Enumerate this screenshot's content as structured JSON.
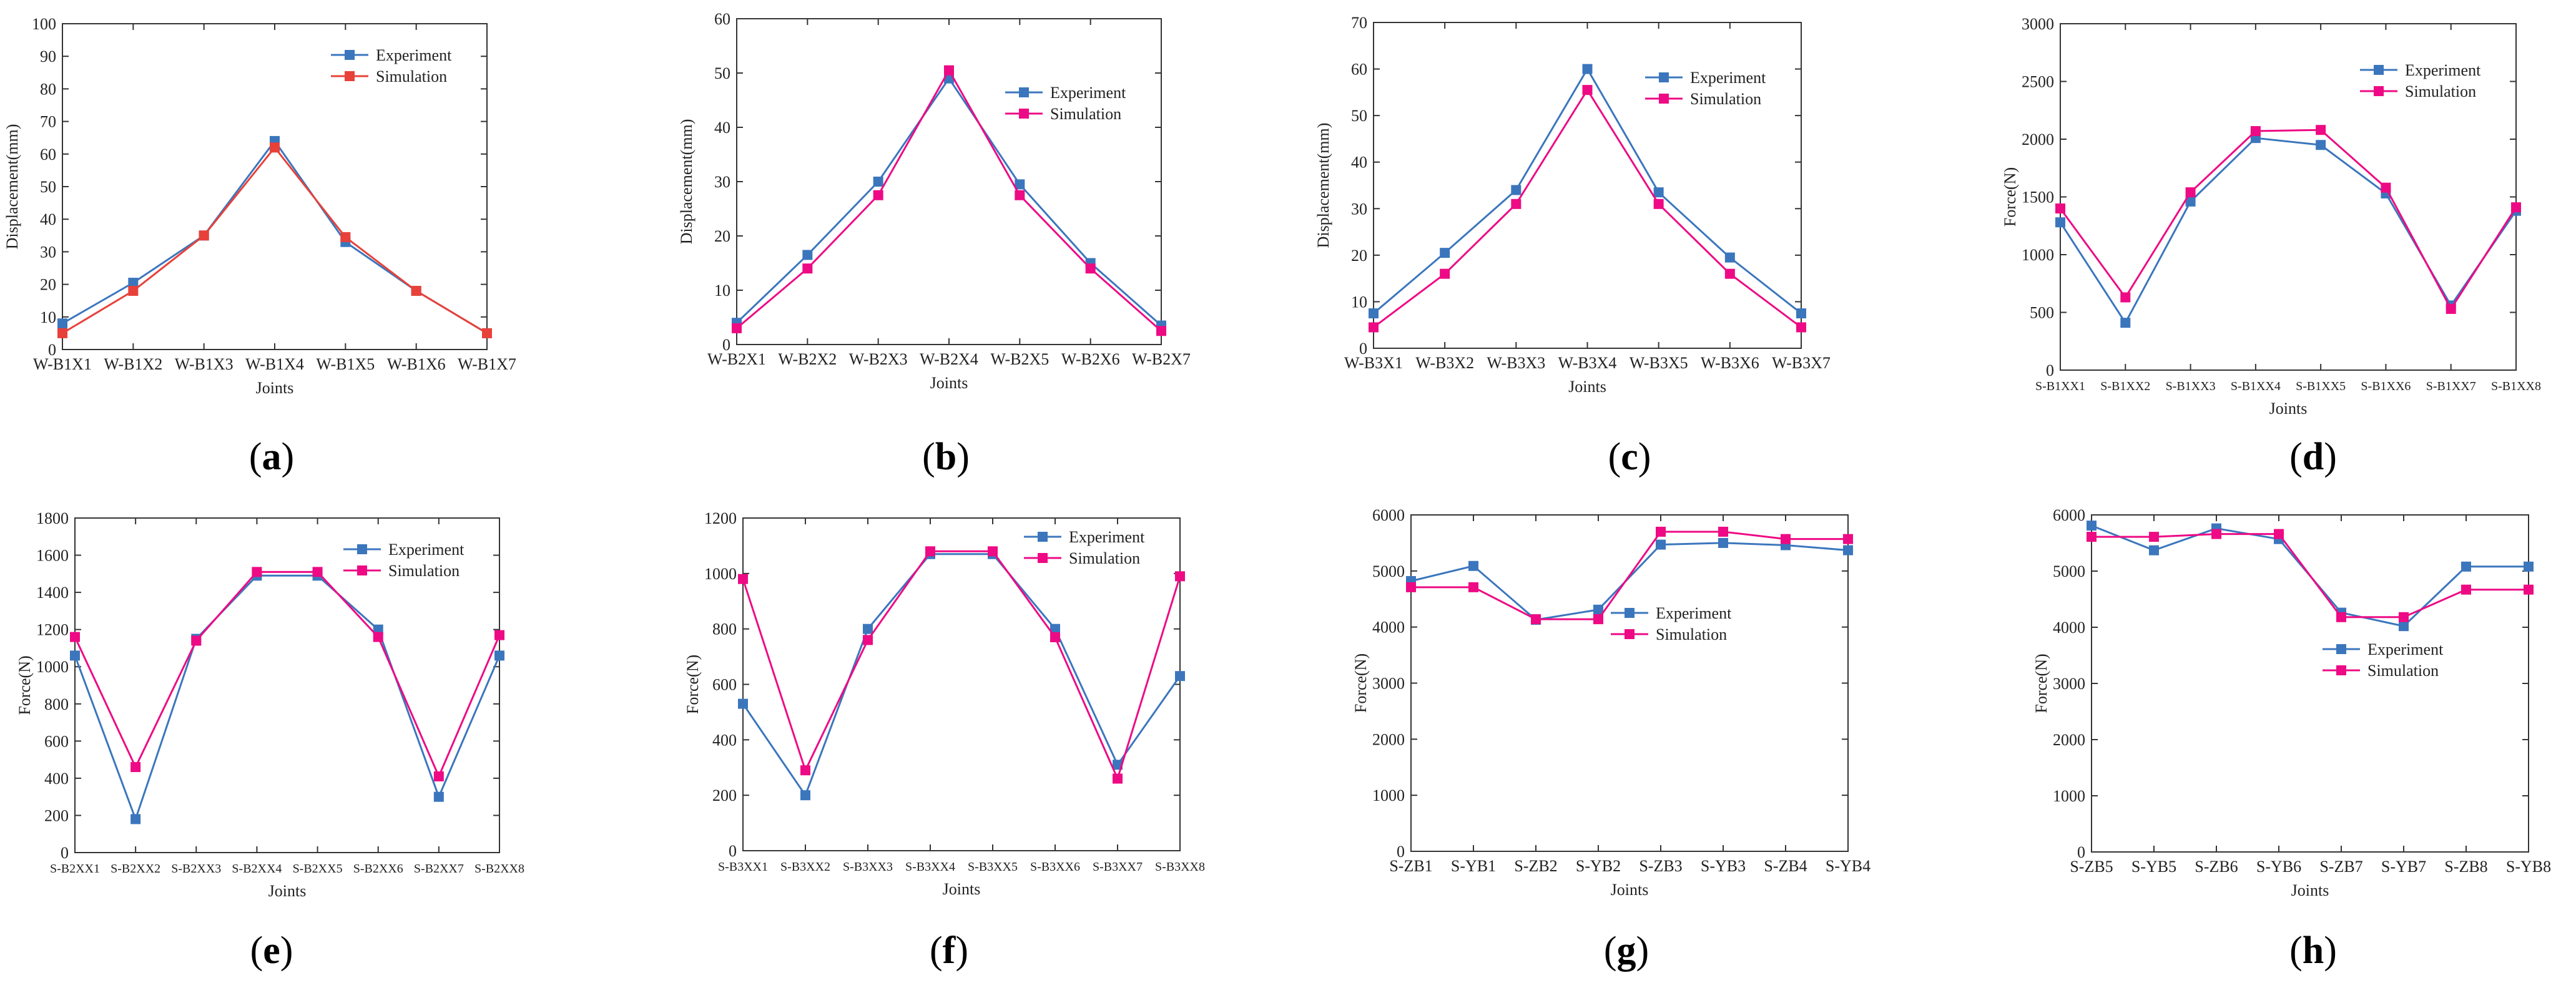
{
  "figure": {
    "colors": {
      "experiment": "#3b76bd",
      "simulation_a": "#e8413a",
      "simulation": "#ee0a84",
      "axis": "#333333"
    }
  },
  "chart_data": [
    {
      "type": "line",
      "panel_label": "a",
      "categories": [
        "W-B1X1",
        "W-B1X2",
        "W-B1X3",
        "W-B1X4",
        "W-B1X5",
        "W-B1X6",
        "W-B1X7"
      ],
      "series": [
        {
          "name": "Experiment",
          "values": [
            8,
            20.5,
            35,
            64,
            33,
            18,
            5
          ],
          "color": "#3b76bd"
        },
        {
          "name": "Simulation",
          "values": [
            5,
            18,
            35,
            62,
            34.5,
            18,
            5
          ],
          "color": "#e8413a"
        }
      ],
      "xlabel": "Joints",
      "ylabel": "Displacement(mm)",
      "ylim": [
        0,
        100
      ],
      "yticks": [
        0,
        10,
        20,
        30,
        40,
        50,
        60,
        70,
        80,
        90,
        100
      ],
      "legend": "top-right"
    },
    {
      "type": "line",
      "panel_label": "b",
      "categories": [
        "W-B2X1",
        "W-B2X2",
        "W-B2X3",
        "W-B2X4",
        "W-B2X5",
        "W-B2X6",
        "W-B2X7"
      ],
      "series": [
        {
          "name": "Experiment",
          "values": [
            4,
            16.5,
            30,
            49,
            29.5,
            15,
            3.5
          ],
          "color": "#3b76bd"
        },
        {
          "name": "Simulation",
          "values": [
            3,
            14,
            27.5,
            50.5,
            27.5,
            14,
            2.5
          ],
          "color": "#ee0a84"
        }
      ],
      "xlabel": "Joints",
      "ylabel": "Displacement(mm)",
      "ylim": [
        0,
        60
      ],
      "yticks": [
        0,
        10,
        20,
        30,
        40,
        50,
        60
      ],
      "legend": "right"
    },
    {
      "type": "line",
      "panel_label": "c",
      "categories": [
        "W-B3X1",
        "W-B3X2",
        "W-B3X3",
        "W-B3X4",
        "W-B3X5",
        "W-B3X6",
        "W-B3X7"
      ],
      "series": [
        {
          "name": "Experiment",
          "values": [
            7.5,
            20.5,
            34,
            60,
            33.5,
            19.5,
            7.5
          ],
          "color": "#3b76bd"
        },
        {
          "name": "Simulation",
          "values": [
            4.5,
            16,
            31,
            55.5,
            31,
            16,
            4.5
          ],
          "color": "#ee0a84"
        }
      ],
      "xlabel": "Joints",
      "ylabel": "Displacement(mm)",
      "ylim": [
        0,
        70
      ],
      "yticks": [
        0,
        10,
        20,
        30,
        40,
        50,
        60,
        70
      ],
      "legend": "top-right"
    },
    {
      "type": "line",
      "panel_label": "d",
      "categories": [
        "S-B1XX1",
        "S-B1XX2",
        "S-B1XX3",
        "S-B1XX4",
        "S-B1XX5",
        "S-B1XX6",
        "S-B1XX7",
        "S-B1XX8"
      ],
      "series": [
        {
          "name": "Experiment",
          "values": [
            1280,
            410,
            1460,
            2010,
            1950,
            1530,
            560,
            1380
          ],
          "color": "#3b76bd"
        },
        {
          "name": "Simulation",
          "values": [
            1400,
            630,
            1540,
            2070,
            2080,
            1580,
            530,
            1410
          ],
          "color": "#ee0a84"
        }
      ],
      "xlabel": "Joints",
      "ylabel": "Force(N)",
      "ylim": [
        0,
        3000
      ],
      "yticks": [
        0,
        500,
        1000,
        1500,
        2000,
        2500,
        3000
      ],
      "legend": "top-right"
    },
    {
      "type": "line",
      "panel_label": "e",
      "categories": [
        "S-B2XX1",
        "S-B2XX2",
        "S-B2XX3",
        "S-B2XX4",
        "S-B2XX5",
        "S-B2XX6",
        "S-B2XX7",
        "S-B2XX8"
      ],
      "series": [
        {
          "name": "Experiment",
          "values": [
            1060,
            180,
            1150,
            1490,
            1490,
            1200,
            300,
            1060
          ],
          "color": "#3b76bd"
        },
        {
          "name": "Simulation",
          "values": [
            1160,
            460,
            1140,
            1510,
            1510,
            1160,
            410,
            1170
          ],
          "color": "#ee0a84"
        }
      ],
      "xlabel": "Joints",
      "ylabel": "Force(N)",
      "ylim": [
        0,
        1800
      ],
      "yticks": [
        0,
        200,
        400,
        600,
        800,
        1000,
        1200,
        1400,
        1600,
        1800
      ],
      "legend": "top-right"
    },
    {
      "type": "line",
      "panel_label": "f",
      "categories": [
        "S-B3XX1",
        "S-B3XX2",
        "S-B3XX3",
        "S-B3XX4",
        "S-B3XX5",
        "S-B3XX6",
        "S-B3XX7",
        "S-B3XX8"
      ],
      "series": [
        {
          "name": "Experiment",
          "values": [
            530,
            200,
            800,
            1070,
            1070,
            800,
            310,
            630
          ],
          "color": "#3b76bd"
        },
        {
          "name": "Simulation",
          "values": [
            980,
            290,
            760,
            1080,
            1080,
            770,
            260,
            990
          ],
          "color": "#ee0a84"
        }
      ],
      "xlabel": "Joints",
      "ylabel": "Force(N)",
      "ylim": [
        0,
        1200
      ],
      "yticks": [
        0,
        200,
        400,
        600,
        800,
        1000,
        1200
      ],
      "legend": "top-right"
    },
    {
      "type": "line",
      "panel_label": "g",
      "categories": [
        "S-ZB1",
        "S-YB1",
        "S-ZB2",
        "S-YB2",
        "S-ZB3",
        "S-YB3",
        "S-ZB4",
        "S-YB4"
      ],
      "series": [
        {
          "name": "Experiment",
          "values": [
            4820,
            5090,
            4130,
            4310,
            5470,
            5500,
            5460,
            5370
          ],
          "color": "#3b76bd"
        },
        {
          "name": "Simulation",
          "values": [
            4710,
            4710,
            4140,
            4140,
            5700,
            5700,
            5570,
            5570
          ],
          "color": "#ee0a84"
        }
      ],
      "xlabel": "Joints",
      "ylabel": "Force(N)",
      "ylim": [
        0,
        6000
      ],
      "yticks": [
        0,
        1000,
        2000,
        3000,
        4000,
        5000,
        6000
      ],
      "legend": "right"
    },
    {
      "type": "line",
      "panel_label": "h",
      "categories": [
        "S-ZB5",
        "S-YB5",
        "S-ZB6",
        "S-YB6",
        "S-ZB7",
        "S-YB7",
        "S-ZB8",
        "S-YB8"
      ],
      "series": [
        {
          "name": "Experiment",
          "values": [
            5810,
            5370,
            5760,
            5570,
            4260,
            4020,
            5080,
            5080
          ],
          "color": "#3b76bd"
        },
        {
          "name": "Simulation",
          "values": [
            5610,
            5610,
            5660,
            5660,
            4180,
            4180,
            4670,
            4670
          ],
          "color": "#ee0a84"
        }
      ],
      "xlabel": "Joints",
      "ylabel": "Force(N)",
      "ylim": [
        0,
        6000
      ],
      "yticks": [
        0,
        1000,
        2000,
        3000,
        4000,
        5000,
        6000
      ],
      "legend": "right"
    }
  ]
}
